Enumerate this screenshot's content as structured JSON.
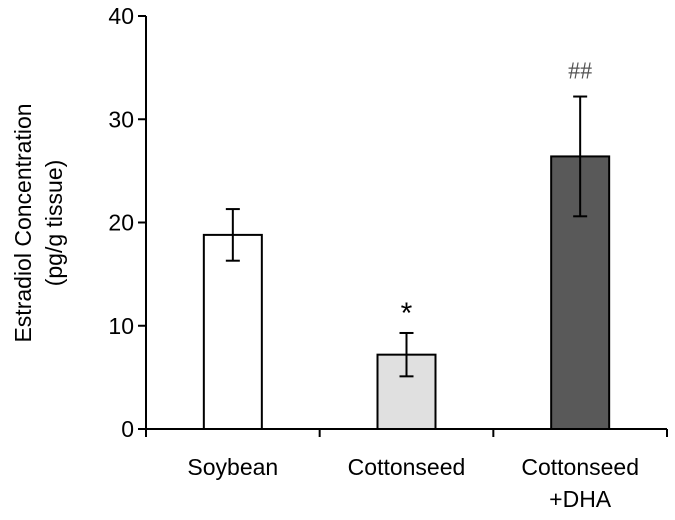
{
  "chart_data": {
    "type": "bar",
    "ylabel_lines": [
      "Estradiol Concentration",
      "(pg/g tissue)"
    ],
    "ylim": [
      0,
      40
    ],
    "yticks": [
      0,
      10,
      20,
      30,
      40
    ],
    "categories": [
      {
        "lines": [
          "Soybean"
        ]
      },
      {
        "lines": [
          "Cottonseed"
        ]
      },
      {
        "lines": [
          "Cottonseed",
          "+DHA"
        ]
      }
    ],
    "values": [
      18.8,
      7.2,
      26.4
    ],
    "errors": [
      2.5,
      2.1,
      5.8
    ],
    "annotations": [
      "",
      "*",
      "##"
    ],
    "bar_colors": [
      "#ffffff",
      "#e0e0e0",
      "#595959"
    ],
    "grid": false,
    "legend": "none"
  }
}
